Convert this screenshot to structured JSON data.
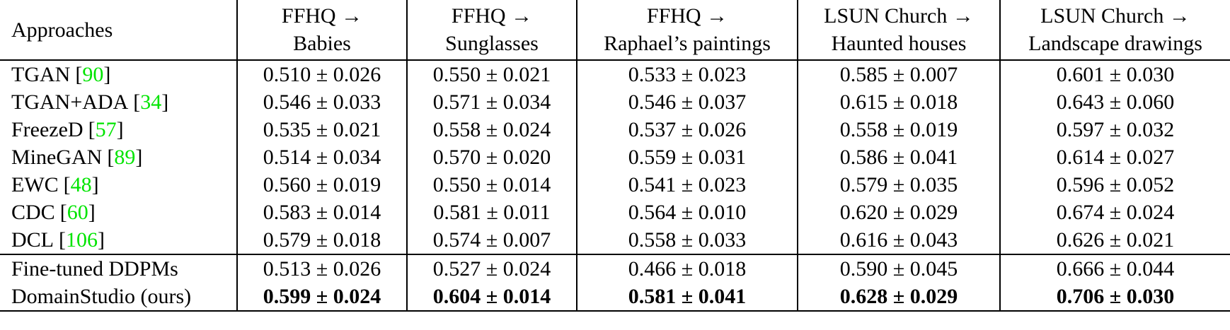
{
  "table": {
    "approaches_label": "Approaches",
    "columns": [
      {
        "line1": "FFHQ →",
        "line2": "Babies"
      },
      {
        "line1": "FFHQ →",
        "line2": "Sunglasses"
      },
      {
        "line1": "FFHQ →",
        "line2": "Raphael’s paintings"
      },
      {
        "line1": "LSUN Church →",
        "line2": "Haunted houses"
      },
      {
        "line1": "LSUN Church →",
        "line2": "Landscape drawings"
      }
    ],
    "rows": [
      {
        "name": "TGAN",
        "cite_open": "[",
        "citation": "90",
        "cite_close": "]",
        "values": [
          "0.510 ± 0.026",
          "0.550 ± 0.021",
          "0.533 ± 0.023",
          "0.585 ± 0.007",
          "0.601 ± 0.030"
        ]
      },
      {
        "name": "TGAN+ADA",
        "cite_open": "[",
        "citation": "34",
        "cite_close": "]",
        "values": [
          "0.546 ± 0.033",
          "0.571 ± 0.034",
          "0.546 ± 0.037",
          "0.615 ± 0.018",
          "0.643 ± 0.060"
        ]
      },
      {
        "name": "FreezeD",
        "cite_open": "[",
        "citation": "57",
        "cite_close": "]",
        "values": [
          "0.535 ± 0.021",
          "0.558 ± 0.024",
          "0.537 ± 0.026",
          "0.558 ± 0.019",
          "0.597 ± 0.032"
        ]
      },
      {
        "name": "MineGAN",
        "cite_open": "[",
        "citation": "89",
        "cite_close": "]",
        "values": [
          "0.514 ± 0.034",
          "0.570 ± 0.020",
          "0.559 ± 0.031",
          "0.586 ± 0.041",
          "0.614 ± 0.027"
        ]
      },
      {
        "name": "EWC",
        "cite_open": "[",
        "citation": "48",
        "cite_close": "]",
        "values": [
          "0.560 ± 0.019",
          "0.550 ± 0.014",
          "0.541 ± 0.023",
          "0.579 ± 0.035",
          "0.596 ± 0.052"
        ]
      },
      {
        "name": "CDC",
        "cite_open": "[",
        "citation": "60",
        "cite_close": "]",
        "values": [
          "0.583 ± 0.014",
          "0.581 ± 0.011",
          "0.564 ± 0.010",
          "0.620 ± 0.029",
          "0.674 ± 0.024"
        ]
      },
      {
        "name": "DCL",
        "cite_open": "[",
        "citation": "106",
        "cite_close": "]",
        "values": [
          "0.579 ± 0.018",
          "0.574 ± 0.007",
          "0.558 ± 0.033",
          "0.616 ± 0.043",
          "0.626 ± 0.021"
        ]
      },
      {
        "name": "Fine-tuned DDPMs",
        "values": [
          "0.513 ± 0.026",
          "0.527 ± 0.024",
          "0.466 ± 0.018",
          "0.590 ± 0.045",
          "0.666 ± 0.044"
        ]
      },
      {
        "name": "DomainStudio (ours)",
        "values": [
          "0.599 ± 0.024",
          "0.604 ± 0.014",
          "0.581 ± 0.041",
          "0.628 ± 0.029",
          "0.706 ± 0.030"
        ]
      }
    ]
  },
  "colors": {
    "background": "#ffffff",
    "text": "#000000",
    "rule": "#000000",
    "citation_green": "#00e400"
  }
}
